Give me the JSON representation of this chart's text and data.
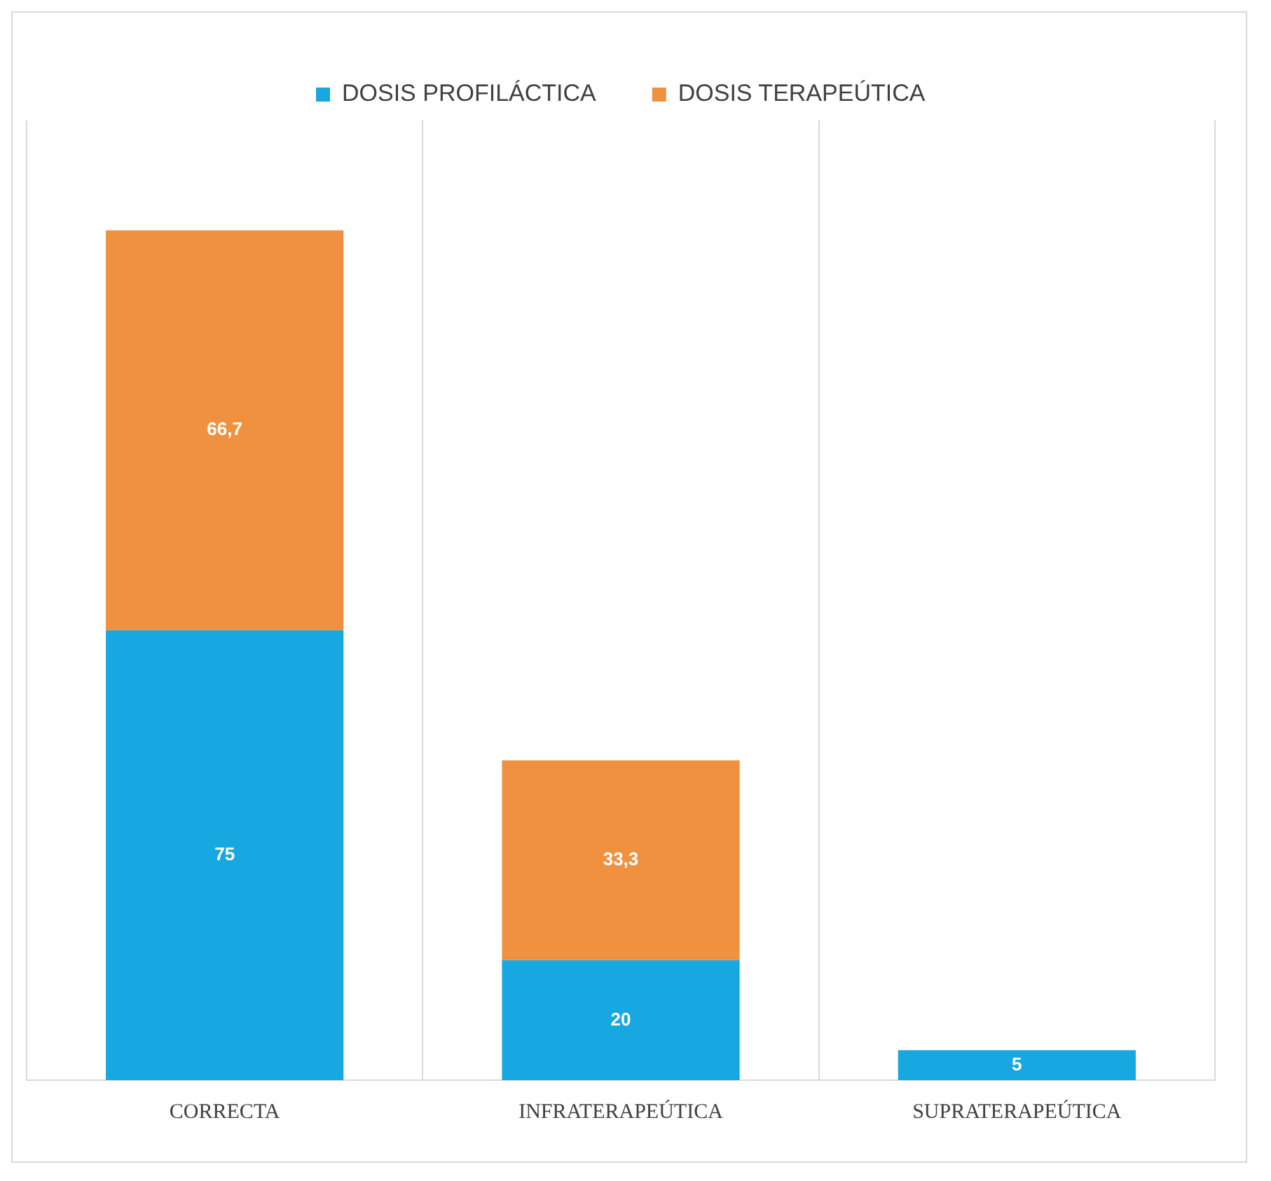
{
  "chart_data": {
    "type": "bar",
    "categories": [
      "CORRECTA",
      "INFRATERAPEÚTICA",
      "SUPRATERAPEÚTICA"
    ],
    "series": [
      {
        "name": "DOSIS PROFILÁCTICA",
        "color": "#17a7e1",
        "values": [
          75,
          20,
          5
        ],
        "value_labels": [
          "75",
          "20",
          "5"
        ]
      },
      {
        "name": "DOSIS TERAPEÚTICA",
        "color": "#f0913f",
        "values": [
          66.7,
          33.3,
          null
        ],
        "value_labels": [
          "66,7",
          "33,3",
          null
        ]
      }
    ],
    "stacked": true,
    "grid": "x",
    "legend": "top"
  }
}
